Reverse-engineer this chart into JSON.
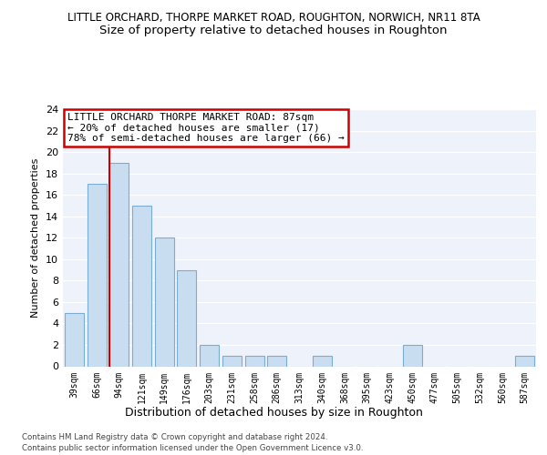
{
  "title": "LITTLE ORCHARD, THORPE MARKET ROAD, ROUGHTON, NORWICH, NR11 8TA",
  "subtitle": "Size of property relative to detached houses in Roughton",
  "xlabel": "Distribution of detached houses by size in Roughton",
  "ylabel": "Number of detached properties",
  "categories": [
    "39sqm",
    "66sqm",
    "94sqm",
    "121sqm",
    "149sqm",
    "176sqm",
    "203sqm",
    "231sqm",
    "258sqm",
    "286sqm",
    "313sqm",
    "340sqm",
    "368sqm",
    "395sqm",
    "423sqm",
    "450sqm",
    "477sqm",
    "505sqm",
    "532sqm",
    "560sqm",
    "587sqm"
  ],
  "values": [
    5,
    17,
    19,
    15,
    12,
    9,
    2,
    1,
    1,
    1,
    0,
    1,
    0,
    0,
    0,
    2,
    0,
    0,
    0,
    0,
    1
  ],
  "bar_color": "#c9ddf0",
  "bar_edge_color": "#7aadd4",
  "property_line_color": "#cc0000",
  "annotation_line1": "LITTLE ORCHARD THORPE MARKET ROAD: 87sqm",
  "annotation_line2": "← 20% of detached houses are smaller (17)",
  "annotation_line3": "78% of semi-detached houses are larger (66) →",
  "annotation_box_color": "#ffffff",
  "annotation_box_edge_color": "#cc0000",
  "ylim": [
    0,
    24
  ],
  "yticks": [
    0,
    2,
    4,
    6,
    8,
    10,
    12,
    14,
    16,
    18,
    20,
    22,
    24
  ],
  "footer1": "Contains HM Land Registry data © Crown copyright and database right 2024.",
  "footer2": "Contains public sector information licensed under the Open Government Licence v3.0.",
  "title_fontsize": 8.5,
  "subtitle_fontsize": 9.5,
  "bg_color": "#eef2fa"
}
